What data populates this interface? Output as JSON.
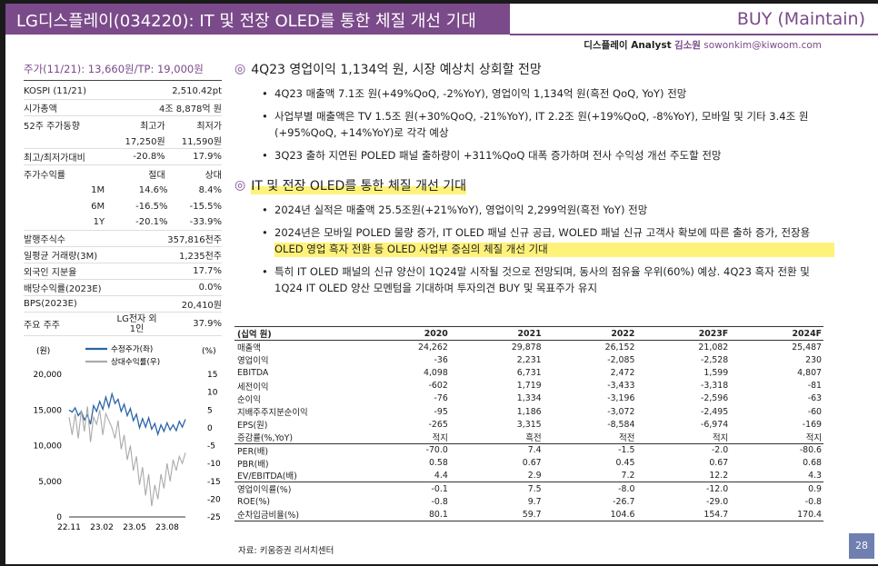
{
  "header": {
    "title": "LG디스플레이(034220): IT 및 전장 OLED를 통한 체질 개선 기대",
    "rating": "BUY (Maintain)"
  },
  "analyst": {
    "team": "디스플레이 Analyst",
    "name": "김소원",
    "email": "sowonkim@kiwoom.com"
  },
  "left": {
    "price_line": "주가(11/21): 13,660원/TP: 19,000원",
    "kospi_label": "KOSPI  (11/21)",
    "kospi_value": "2,510.42pt",
    "mcap_label": "시가총액",
    "mcap_value": "4조 8,878억 원",
    "w52_label": "52주 주가동향",
    "w52_high_h": "최고가",
    "w52_low_h": "최저가",
    "w52_high": "17,250원",
    "w52_low": "11,590원",
    "vs_label": "최고/최저가대비",
    "vs_high": "-20.8%",
    "vs_low": "17.9%",
    "ret_label": "주가수익률",
    "ret_abs_h": "절대",
    "ret_rel_h": "상대",
    "returns": [
      {
        "period": "1M",
        "abs": "14.6%",
        "rel": "8.4%"
      },
      {
        "period": "6M",
        "abs": "-16.5%",
        "rel": "-15.5%"
      },
      {
        "period": "1Y",
        "abs": "-20.1%",
        "rel": "-33.9%"
      }
    ],
    "shares_label": "발행주식수",
    "shares_value": "357,816천주",
    "vol_label": "일평균 거래량(3M)",
    "vol_value": "1,235천주",
    "foreign_label": "외국인 지분율",
    "foreign_value": "17.7%",
    "div_label": "배당수익률(2023E)",
    "div_value": "0.0%",
    "bps_label": "BPS(2023E)",
    "bps_value": "20,410원",
    "holder_label": "주요 주주",
    "holder_name_1": "LG전자 외",
    "holder_name_2": "1인",
    "holder_value": "37.9%"
  },
  "chart_data": {
    "type": "line",
    "title": "",
    "ylabel_left": "(원)",
    "ylabel_right": "(%)",
    "legend_position": "top",
    "ylim_left": [
      0,
      20000
    ],
    "ylim_right": [
      -25,
      15
    ],
    "yticks_left": [
      "20,000",
      "15,000",
      "10,000",
      "5,000",
      "0"
    ],
    "yticks_right": [
      "15",
      "10",
      "5",
      "0",
      "-5",
      "-10",
      "-15",
      "-20",
      "-25"
    ],
    "xticks": [
      "22.11",
      "23.02",
      "23.05",
      "23.08"
    ],
    "series": [
      {
        "name": "수정주가(좌)",
        "axis": "left",
        "color": "#2c64a8",
        "values": [
          15000,
          14700,
          15300,
          14200,
          14800,
          13600,
          14300,
          13000,
          15600,
          14800,
          16200,
          15100,
          16800,
          15400,
          17250,
          15900,
          16500,
          14800,
          15800,
          14200,
          15200,
          13500,
          14400,
          12500,
          13800,
          12600,
          13900,
          12300,
          13100,
          11590,
          12900,
          12000,
          13200,
          12200,
          12900,
          12100,
          13400,
          12600,
          13700
        ]
      },
      {
        "name": "상대수익률(우)",
        "axis": "right",
        "color": "#aaaaaa",
        "values": [
          3,
          -2,
          4,
          -3,
          5,
          -1,
          6,
          -4,
          3,
          1,
          5,
          -2,
          4,
          2,
          0,
          -3,
          2,
          -6,
          -2,
          -9,
          -5,
          -12,
          -8,
          -16,
          -11,
          -19,
          -13,
          -22,
          -16,
          -20,
          -13,
          -17,
          -10,
          -15,
          -9,
          -12,
          -8,
          -10,
          -7
        ]
      }
    ]
  },
  "sections": [
    {
      "title": "4Q23 영업이익 1,134억 원, 시장 예상치 상회할 전망",
      "bullets": [
        "4Q23 매출액 7.1조 원(+49%QoQ, -2%YoY), 영업이익 1,134억 원(흑전 QoQ, YoY) 전망",
        "사업부별 매출액은 TV 1.5조 원(+30%QoQ, -21%YoY), IT 2.2조 원(+19%QoQ, -8%YoY), 모바일 및 기타 3.4조 원(+95%QoQ, +14%YoY)로 각각 예상",
        "3Q23 출하 지연된 POLED 패널 출하량이 +311%QoQ 대폭 증가하며 전사 수익성 개선 주도할 전망"
      ]
    },
    {
      "title": "IT 및 전장 OLED를 통한 체질 개선 기대",
      "bullets": [
        "2024년 실적은 매출액 25.5조원(+21%YoY), 영업이익 2,299억원(흑전 YoY) 전망",
        "2024년은 모바일 POLED 물량 증가, IT OLED 패널 신규 공급, WOLED 패널 신규 고객사 확보에 따른 출하 증가, 전장용 OLED 영업 흑자 전환 등 OLED 사업부 중심의 체질 개선 기대",
        "특히 IT OLED 패널의 신규 양산이 1Q24말 시작될 것으로 전망되며, 동사의 점유율 우위(60%) 예상. 4Q23 흑자 전환 및 1Q24 IT OLED 양산 모멘텀을 기대하며 투자의견 BUY 및 목표주가 유지"
      ]
    }
  ],
  "table": {
    "headers": [
      "(십억 원)",
      "2020",
      "2021",
      "2022",
      "2023F",
      "2024F"
    ],
    "rows": [
      [
        "매출액",
        "24,262",
        "29,878",
        "26,152",
        "21,082",
        "25,487"
      ],
      [
        "영업이익",
        "-36",
        "2,231",
        "-2,085",
        "-2,528",
        "230"
      ],
      [
        "EBITDA",
        "4,098",
        "6,731",
        "2,472",
        "1,599",
        "4,807"
      ],
      [
        "세전이익",
        "-602",
        "1,719",
        "-3,433",
        "-3,318",
        "-81"
      ],
      [
        "순이익",
        "-76",
        "1,334",
        "-3,196",
        "-2,596",
        "-63"
      ],
      [
        "지배주주지분순이익",
        "-95",
        "1,186",
        "-3,072",
        "-2,495",
        "-60"
      ],
      [
        "EPS(원)",
        "-265",
        "3,315",
        "-8,584",
        "-6,974",
        "-169"
      ],
      [
        "증감률(%,YoY)",
        "적지",
        "흑전",
        "적전",
        "적지",
        "적지"
      ],
      [
        "PER(배)",
        "-70.0",
        "7.4",
        "-1.5",
        "-2.0",
        "-80.6"
      ],
      [
        "PBR(배)",
        "0.58",
        "0.67",
        "0.45",
        "0.67",
        "0.68"
      ],
      [
        "EV/EBITDA(배)",
        "4.4",
        "2.9",
        "7.2",
        "12.2",
        "4.3"
      ],
      [
        "영업이익률(%)",
        "-0.1",
        "7.5",
        "-8.0",
        "-12.0",
        "0.9"
      ],
      [
        "ROE(%)",
        "-0.8",
        "9.7",
        "-26.7",
        "-29.0",
        "-0.8"
      ],
      [
        "순차입금비율(%)",
        "80.1",
        "59.7",
        "104.6",
        "154.7",
        "170.4"
      ]
    ]
  },
  "source": "자료: 키움증권 리서치센터",
  "page_number": "28"
}
